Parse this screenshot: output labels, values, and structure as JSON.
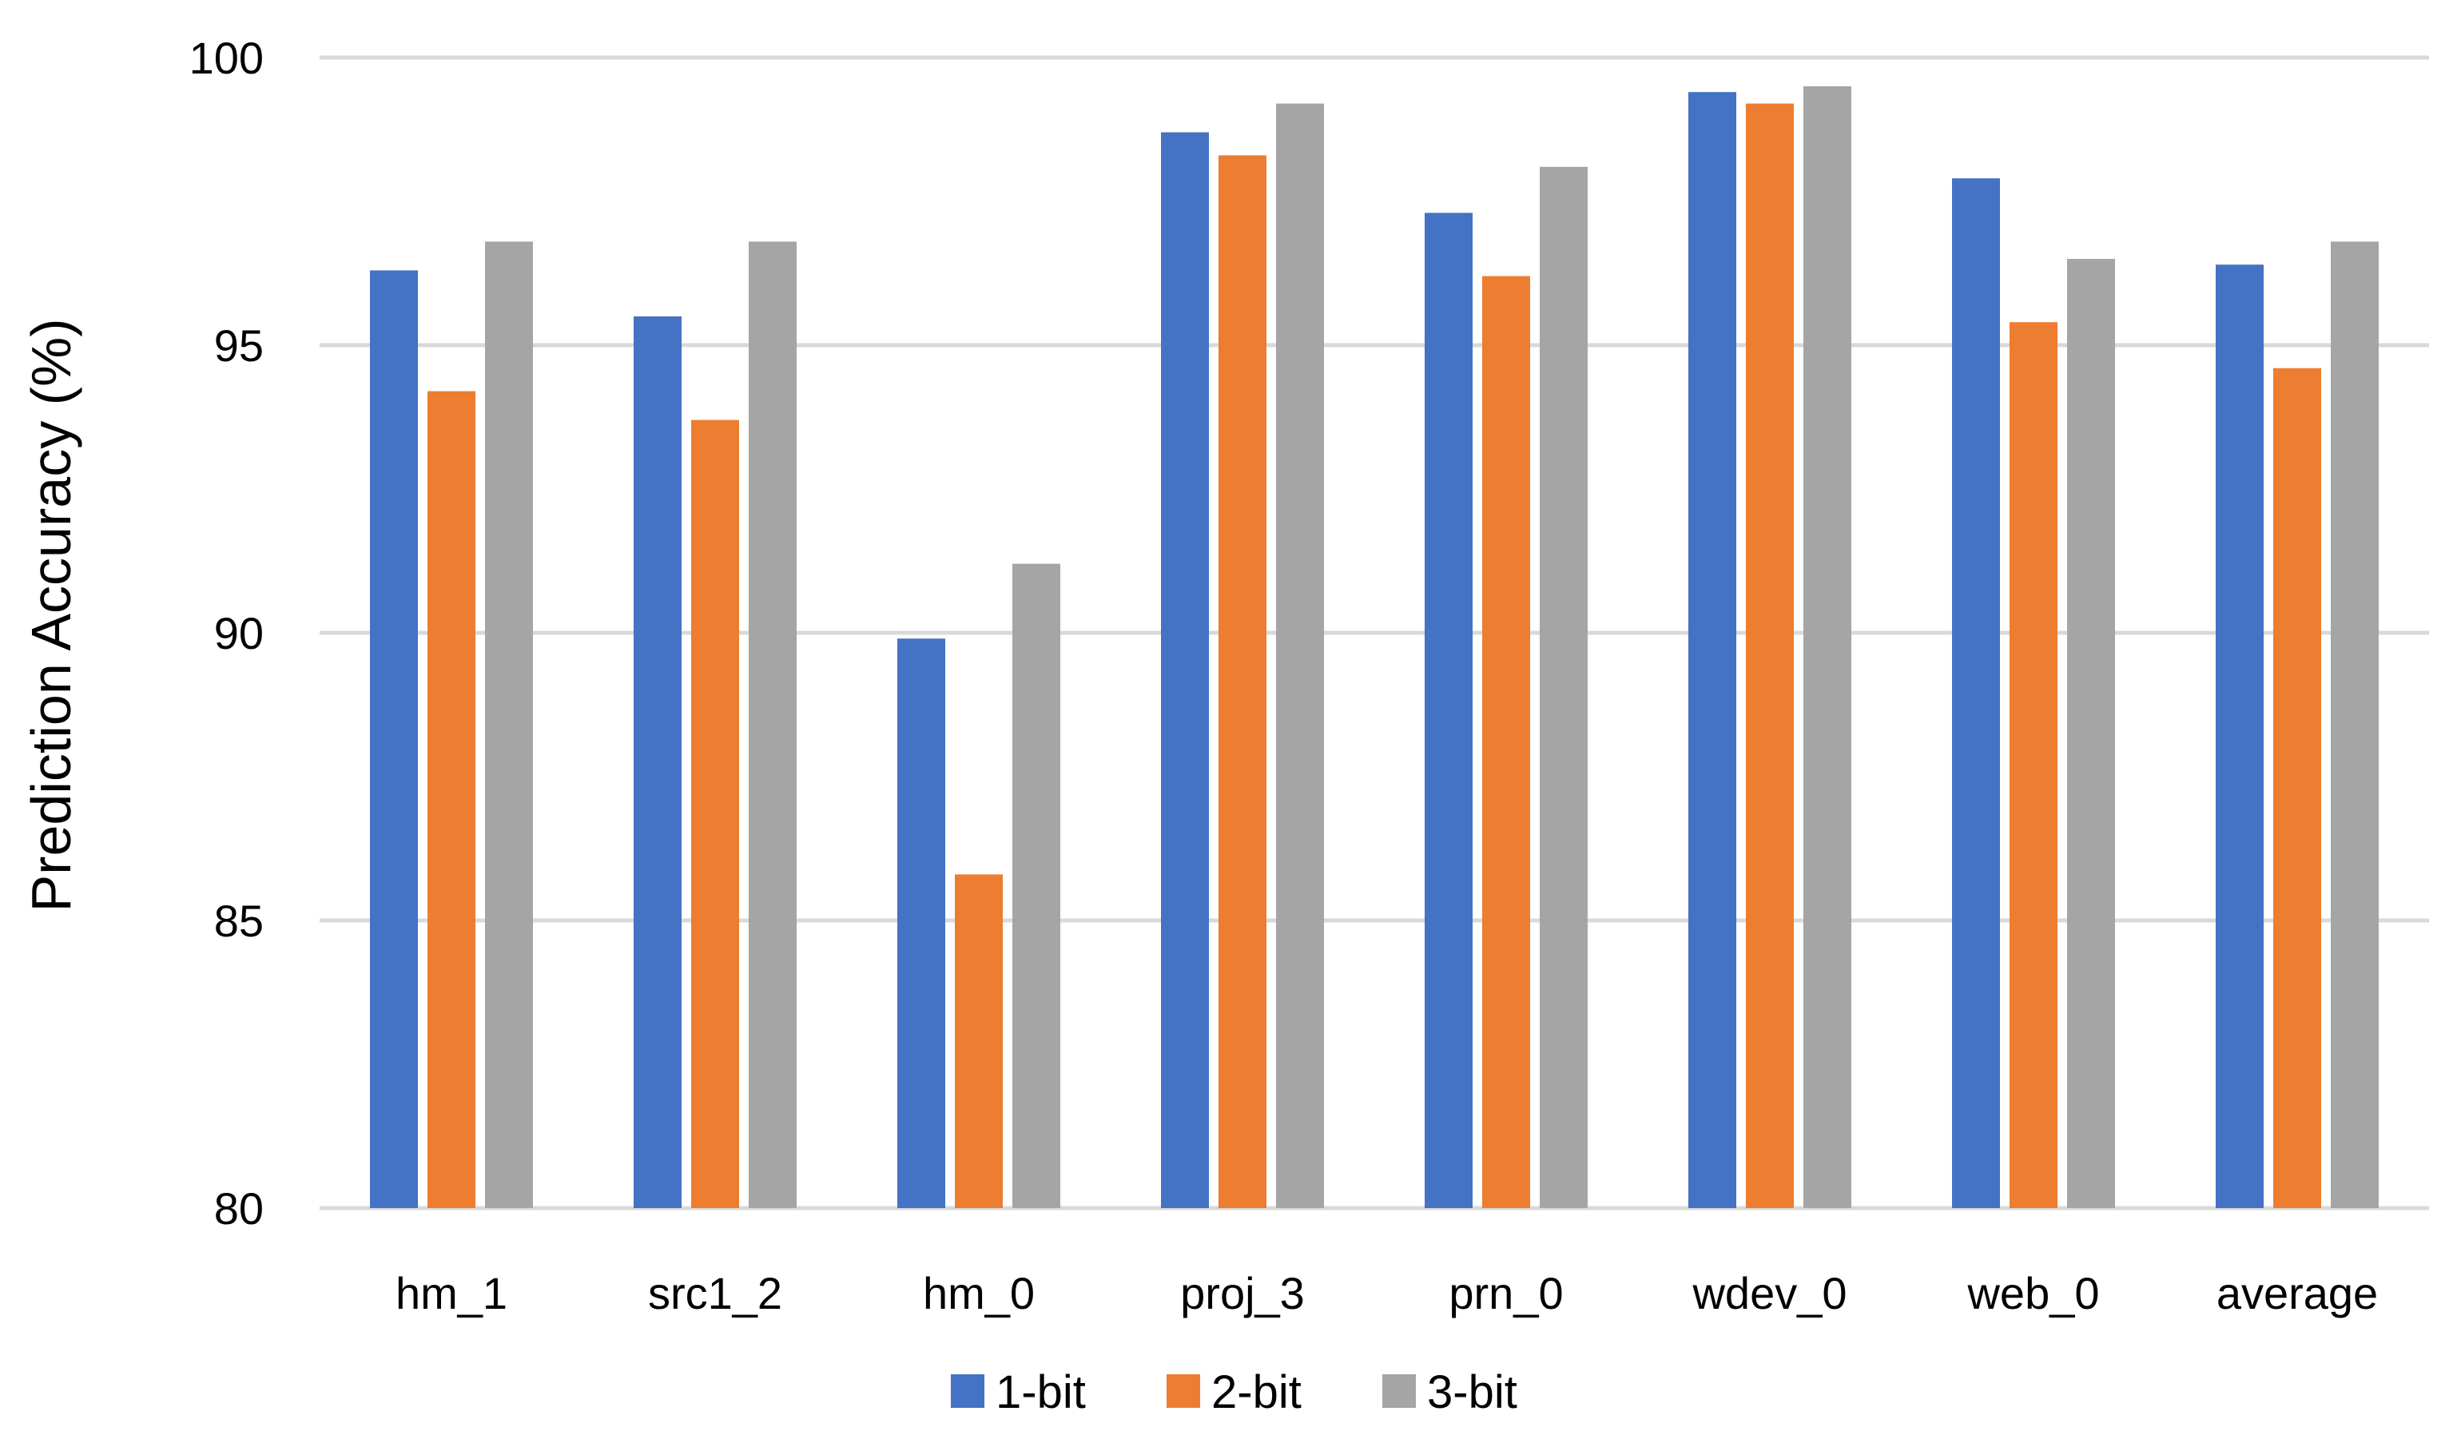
{
  "chart_data": {
    "type": "bar",
    "title": "",
    "xlabel": "",
    "ylabel": "Prediction Accuracy (%)",
    "ylim": [
      80,
      100
    ],
    "yticks": [
      80,
      85,
      90,
      95,
      100
    ],
    "grid": true,
    "legend_position": "bottom",
    "categories": [
      "hm_1",
      "src1_2",
      "hm_0",
      "proj_3",
      "prn_0",
      "wdev_0",
      "web_0",
      "average"
    ],
    "series": [
      {
        "name": "1-bit",
        "color": "#4472c4",
        "values": [
          96.3,
          95.5,
          89.9,
          98.7,
          97.3,
          99.4,
          97.9,
          96.4
        ]
      },
      {
        "name": "2-bit",
        "color": "#ed7d31",
        "values": [
          94.2,
          93.7,
          85.8,
          98.3,
          96.2,
          99.2,
          95.4,
          94.6
        ]
      },
      {
        "name": "3-bit",
        "color": "#a5a5a5",
        "values": [
          96.8,
          96.8,
          91.2,
          99.2,
          98.1,
          99.5,
          96.5,
          96.8
        ]
      }
    ]
  }
}
